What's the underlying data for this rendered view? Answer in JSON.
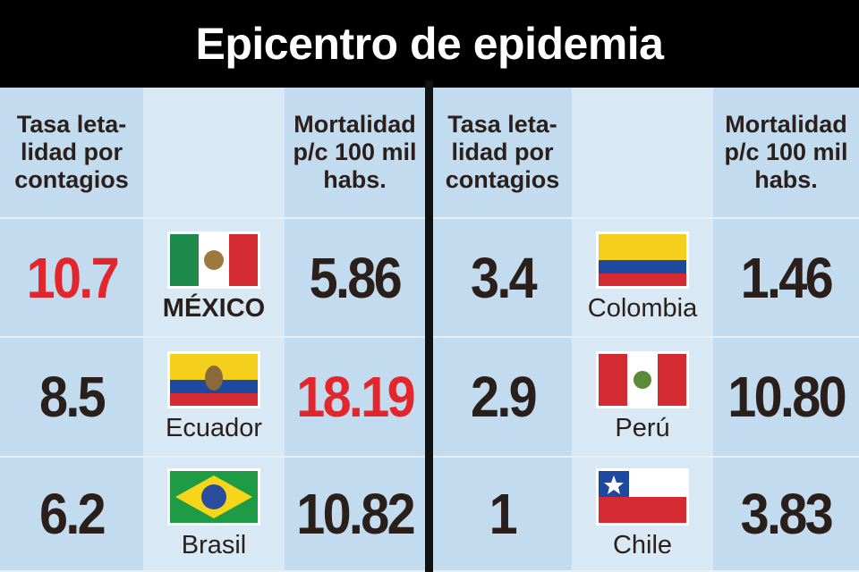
{
  "title": "Epicentro de epidemia",
  "tables": [
    {
      "headers": {
        "rate": [
          "Tasa leta-",
          "lidad por",
          "contagios"
        ],
        "mortality": [
          "Mortalidad",
          "p/c 100 mil",
          "habs."
        ]
      },
      "rows": [
        {
          "rate": "10.7",
          "country": "MÉXICO",
          "mortality": "5.86",
          "rate_color": "#e3262b"
        },
        {
          "rate": "8.5",
          "country": "Ecuador",
          "mortality": "18.19",
          "mortality_color": "#e3262b"
        },
        {
          "rate": "6.2",
          "country": "Brasil",
          "mortality": "10.82"
        }
      ]
    },
    {
      "headers": {
        "rate": [
          "Tasa leta-",
          "lidad por",
          "contagios"
        ],
        "mortality": [
          "Mortalidad",
          "p/c 100 mil",
          "habs."
        ]
      },
      "rows": [
        {
          "rate": "3.4",
          "country": "Colombia",
          "mortality": "1.46"
        },
        {
          "rate": "2.9",
          "country": "Perú",
          "mortality": "10.80"
        },
        {
          "rate": "1",
          "country": "Chile",
          "mortality": "3.83"
        }
      ]
    }
  ]
}
